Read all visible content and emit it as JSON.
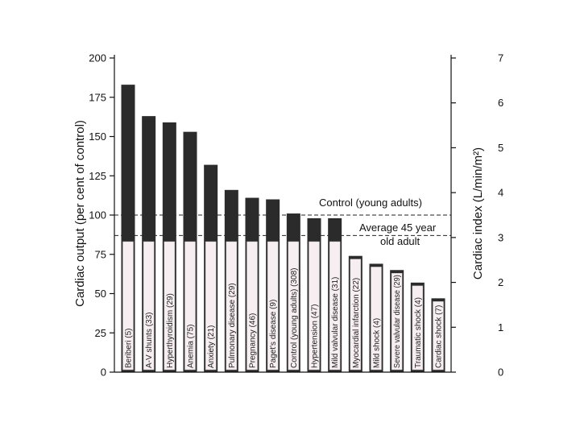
{
  "chart_data": {
    "type": "bar",
    "title": "",
    "ylabel": "Cardiac output (per cent of control)",
    "ylabel_right": "Cardiac index (L/min/m²)",
    "ylim": [
      0,
      200
    ],
    "ylim_right": [
      0,
      7
    ],
    "yticks": [
      "0",
      "25",
      "50",
      "75",
      "100",
      "125",
      "150",
      "175",
      "200"
    ],
    "yticks_right": [
      "0",
      "1",
      "2",
      "3",
      "4",
      "5",
      "6",
      "7"
    ],
    "categories": [
      "Beriberi (5)",
      "A-V shunts (33)",
      "Hyperthyroidism (29)",
      "Anemia (75)",
      "Anxiety (21)",
      "Pulmonary disease (29)",
      "Pregnancy (46)",
      "Paget's disease (9)",
      "Control (young adults) (308)",
      "Hypertension (47)",
      "Mild valvular disease (31)",
      "Myocardial infarction (22)",
      "Mild shock (4)",
      "Severe valvular disease (29)",
      "Traumatic shock (4)",
      "Cardiac shock (7)"
    ],
    "values": [
      183,
      163,
      159,
      153,
      132,
      116,
      111,
      110,
      101,
      98,
      98,
      74,
      69,
      65,
      57,
      47
    ],
    "colors": {
      "bar": "#2b2b2b",
      "label_box": "#f6eef1"
    },
    "reference_lines": [
      {
        "value": 100,
        "label": "Control (young adults)",
        "style": "dashed"
      },
      {
        "value": 87,
        "label": "Average 45 year",
        "label2": "old adult",
        "style": "dashed"
      }
    ]
  }
}
